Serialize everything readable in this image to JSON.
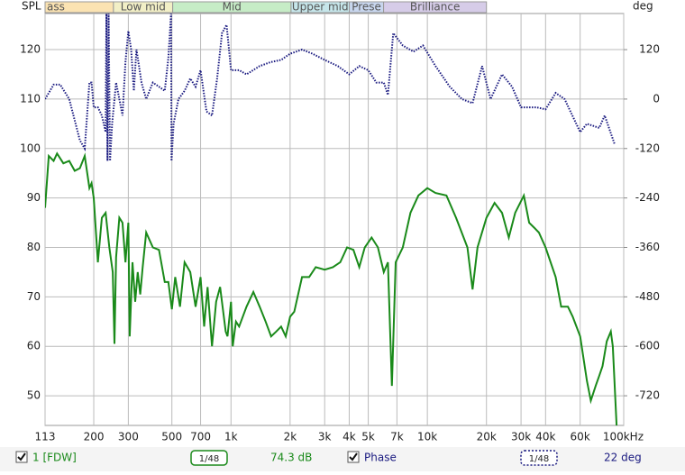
{
  "chart_data": {
    "type": "line",
    "ylabel": "SPL",
    "y2label": "deg",
    "log_x": true,
    "grid": true,
    "xlim": [
      113,
      100000
    ],
    "xticks": [
      113,
      200,
      300,
      500,
      700,
      {
        "value": 1000,
        "label": "1k"
      },
      {
        "value": 2000,
        "label": "2k"
      },
      {
        "value": 3000,
        "label": "3k"
      },
      {
        "value": 4000,
        "label": "4k"
      },
      {
        "value": 5000,
        "label": "5k"
      },
      {
        "value": 7000,
        "label": "7k"
      },
      {
        "value": 10000,
        "label": "10k"
      },
      {
        "value": 20000,
        "label": "20k"
      },
      {
        "value": 30000,
        "label": "30k"
      },
      {
        "value": 40000,
        "label": "40k"
      },
      {
        "value": 60000,
        "label": "60k"
      },
      {
        "value": 100000,
        "label": "100kHz"
      }
    ],
    "ylim": [
      44,
      127.3
    ],
    "yticks": [
      50,
      60,
      70,
      80,
      90,
      100,
      110,
      120
    ],
    "y2lim": [
      -792,
      207.6
    ],
    "y2ticks": [
      -720,
      -600,
      -480,
      -360,
      -240,
      -120,
      0,
      120
    ],
    "bands": [
      {
        "label": "ass",
        "from": 113,
        "to": 252,
        "color": "#fbe3b2"
      },
      {
        "label": "Low mid",
        "from": 252,
        "to": 505,
        "color": "#f2efc6"
      },
      {
        "label": "Mid",
        "from": 505,
        "to": 2022,
        "color": "#c6ecc6"
      },
      {
        "label": "Upper mid",
        "from": 2022,
        "to": 4005,
        "color": "#c6e6ea"
      },
      {
        "label": "Prese",
        "from": 4005,
        "to": 5985,
        "color": "#c8d6ee"
      },
      {
        "label": "Brilliance",
        "from": 5985,
        "to": 20000,
        "color": "#d6cce8"
      }
    ],
    "series": [
      {
        "name": "1 [FDW]",
        "color": "#1a8a1a",
        "x": [
          113,
          118,
          125,
          130,
          140,
          150,
          160,
          170,
          180,
          190,
          195,
          200,
          210,
          220,
          230,
          240,
          250,
          255,
          260,
          270,
          280,
          290,
          300,
          305,
          315,
          325,
          335,
          345,
          355,
          370,
          400,
          430,
          460,
          480,
          500,
          520,
          550,
          580,
          620,
          660,
          700,
          730,
          760,
          800,
          840,
          880,
          940,
          960,
          1000,
          1020,
          1060,
          1100,
          1200,
          1300,
          1400,
          1500,
          1600,
          1700,
          1800,
          1900,
          2000,
          2100,
          2300,
          2500,
          2700,
          3000,
          3300,
          3600,
          3900,
          4200,
          4500,
          4800,
          5200,
          5600,
          6000,
          6300,
          6600,
          6900,
          7500,
          8200,
          9000,
          10000,
          11000,
          12500,
          14000,
          16000,
          17000,
          18000,
          20000,
          22000,
          24000,
          26000,
          28000,
          31000,
          33000,
          35000,
          37000,
          40000,
          45000,
          48000,
          52000,
          55000,
          60000,
          65000,
          68000,
          72000,
          75000,
          78000,
          82000,
          86000,
          88000,
          92000
        ],
        "values": [
          88,
          98.5,
          97.5,
          99,
          97,
          97.5,
          95.5,
          96,
          98.5,
          92,
          93,
          90,
          77,
          86,
          87,
          80,
          75,
          60.5,
          78,
          86,
          85,
          77,
          85,
          62,
          77,
          69,
          75,
          70.5,
          76,
          83,
          80,
          79.5,
          73,
          73,
          67.5,
          74,
          68,
          77,
          75,
          68,
          74,
          64,
          72,
          60,
          69,
          72,
          63,
          62,
          69,
          60,
          65,
          64,
          68,
          71,
          68,
          65,
          62,
          63,
          64,
          62,
          66,
          67,
          74,
          74,
          76,
          75.5,
          76,
          77,
          80,
          79.5,
          76,
          80,
          82,
          80,
          75,
          77,
          52,
          77,
          80,
          87,
          90.5,
          92,
          91,
          90.5,
          86,
          80,
          71.5,
          80,
          86,
          89,
          87,
          82,
          87,
          90.5,
          85,
          84,
          83,
          80,
          74,
          68,
          68,
          66,
          62,
          53,
          49,
          52,
          54,
          56,
          61,
          63,
          60,
          44
        ]
      },
      {
        "name": "Phase",
        "color": "#1a1a80",
        "axis": "y2",
        "x": [
          113,
          118,
          125,
          135,
          150,
          170,
          180,
          190,
          195,
          200,
          210,
          220,
          230,
          232,
          235,
          238,
          242,
          248,
          260,
          270,
          280,
          290,
          300,
          310,
          320,
          330,
          340,
          350,
          370,
          400,
          430,
          460,
          480,
          495,
          498,
          510,
          540,
          580,
          620,
          660,
          700,
          750,
          800,
          850,
          900,
          950,
          1000,
          1100,
          1200,
          1400,
          1600,
          1800,
          2000,
          2300,
          2600,
          3000,
          3500,
          4000,
          4500,
          5000,
          5500,
          6000,
          6300,
          6700,
          7500,
          8500,
          9500,
          11000,
          13000,
          15000,
          17000,
          19000,
          21000,
          24000,
          27000,
          30000,
          33000,
          36000,
          40000,
          45000,
          50000,
          60000,
          65000,
          75000,
          80000,
          90000
        ],
        "values": [
          0,
          15,
          35,
          35,
          0,
          -100,
          -120,
          40,
          40,
          -20,
          -20,
          -40,
          -80,
          207,
          -150,
          207,
          -150,
          -60,
          40,
          0,
          -40,
          90,
          165,
          120,
          20,
          120,
          80,
          40,
          0,
          40,
          30,
          20,
          100,
          207,
          -150,
          -60,
          0,
          20,
          50,
          30,
          70,
          -30,
          -40,
          50,
          160,
          180,
          70,
          70,
          60,
          80,
          90,
          95,
          110,
          120,
          110,
          95,
          80,
          60,
          80,
          70,
          40,
          40,
          10,
          160,
          130,
          115,
          130,
          80,
          30,
          0,
          -10,
          80,
          0,
          60,
          30,
          -20,
          -20,
          -20,
          -25,
          15,
          0,
          -80,
          -60,
          -70,
          -40,
          -110
        ]
      }
    ],
    "status": {
      "level": "74.3 dB",
      "smoothing": "1/48",
      "phase_smoothing": "1/48",
      "phase_offset": "22 deg"
    }
  }
}
